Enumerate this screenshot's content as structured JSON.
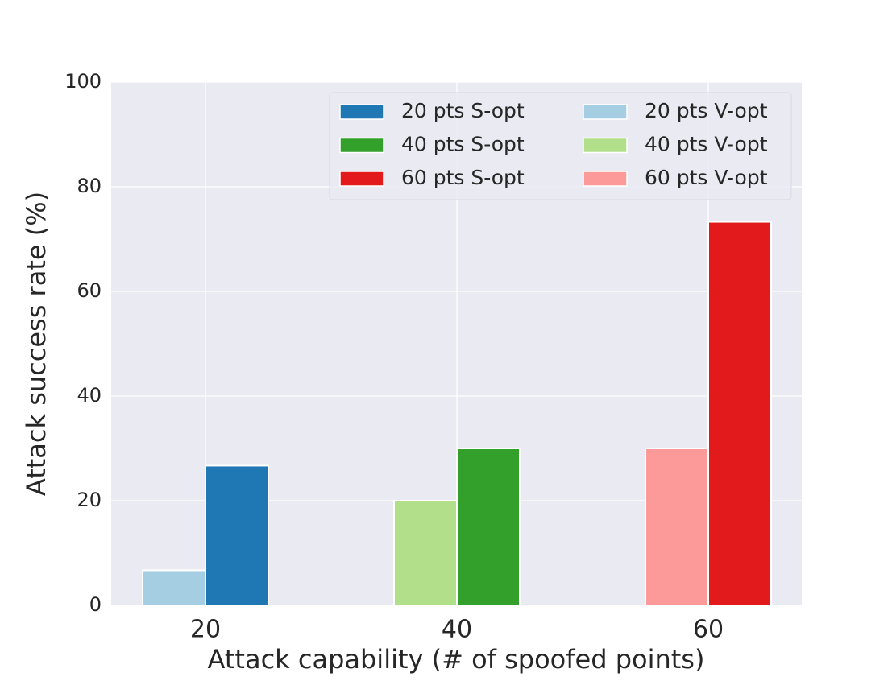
{
  "chart_data": {
    "type": "bar",
    "xlabel": "Attack capability (# of spoofed points)",
    "ylabel": "Attack success rate (%)",
    "categories": [
      20,
      40,
      60
    ],
    "series": [
      {
        "name": "20 pts S-opt",
        "color": "#1f78b4",
        "values": [
          26.7,
          null,
          null
        ]
      },
      {
        "name": "40 pts S-opt",
        "color": "#33a02c",
        "values": [
          null,
          30,
          null
        ]
      },
      {
        "name": "60 pts S-opt",
        "color": "#e31a1c",
        "values": [
          null,
          null,
          73.3
        ]
      },
      {
        "name": "20 pts V-opt",
        "color": "#a6cee3",
        "values": [
          6.7,
          null,
          null
        ]
      },
      {
        "name": "40 pts V-opt",
        "color": "#b2df8a",
        "values": [
          null,
          20,
          null
        ]
      },
      {
        "name": "60 pts V-opt",
        "color": "#fb9a99",
        "values": [
          null,
          null,
          30
        ]
      }
    ],
    "ylim": [
      0,
      100
    ],
    "yticks": [
      0,
      20,
      40,
      60,
      80,
      100
    ],
    "grid": true,
    "legend": "upper right"
  }
}
